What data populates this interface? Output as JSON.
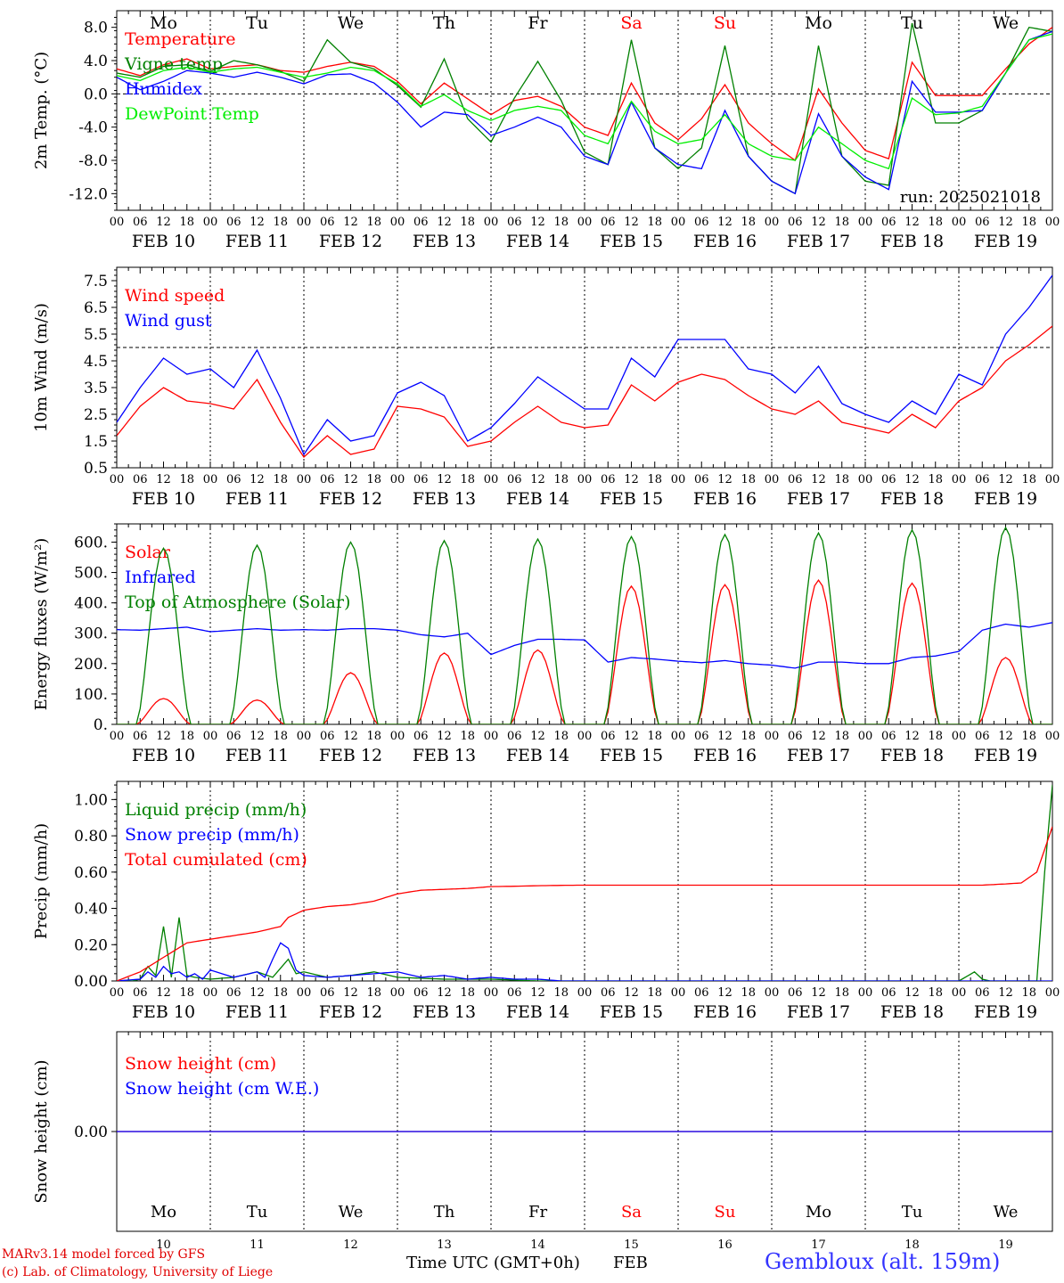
{
  "chart_data": [
    {
      "type": "line",
      "panel": "temperature",
      "ylabel": "2m Temp. (°C)",
      "ylim": [
        -14,
        10
      ],
      "yticks": [
        8.0,
        4.0,
        0.0,
        -4.0,
        -8.0,
        -12.0
      ],
      "ytick_labels": [
        "8.0",
        "4.0",
        "0.0",
        "-4.0",
        "-8.0",
        "-12.0"
      ],
      "ref_line": 0,
      "annotation": "run: 2025021018",
      "series": [
        {
          "name": "Temperature",
          "color": "#ff0000",
          "x": [
            0,
            6,
            12,
            18,
            24,
            30,
            36,
            42,
            48,
            54,
            60,
            66,
            72,
            78,
            84,
            90,
            96,
            102,
            108,
            114,
            120,
            126,
            132,
            138,
            144,
            150,
            156,
            162,
            168,
            174,
            180,
            186,
            192,
            198,
            204,
            210,
            216,
            222,
            228,
            234,
            240
          ],
          "y": [
            3.0,
            2.2,
            3.5,
            4.2,
            3.0,
            3.3,
            3.5,
            2.8,
            2.6,
            3.3,
            3.8,
            3.3,
            1.5,
            -1.2,
            1.3,
            -0.6,
            -2.5,
            -0.8,
            -0.3,
            -1.5,
            -4.0,
            -5.0,
            1.3,
            -3.5,
            -5.5,
            -3.0,
            1.1,
            -3.5,
            -6.0,
            -8.0,
            0.6,
            -3.5,
            -6.8,
            -7.8,
            3.8,
            -0.2,
            -0.2,
            -0.2,
            3.0,
            6.0,
            8.0
          ]
        },
        {
          "name": "Vigne temp",
          "color": "#008000",
          "x": [
            0,
            6,
            12,
            18,
            24,
            30,
            36,
            42,
            48,
            54,
            60,
            66,
            72,
            78,
            84,
            90,
            96,
            102,
            108,
            114,
            120,
            126,
            132,
            138,
            144,
            150,
            156,
            162,
            168,
            174,
            180,
            186,
            192,
            198,
            204,
            210,
            216,
            222,
            228,
            234,
            240
          ],
          "y": [
            2.5,
            2.0,
            3.3,
            3.5,
            2.7,
            4.0,
            3.5,
            2.7,
            1.5,
            6.5,
            3.8,
            3.0,
            1.0,
            -1.6,
            4.2,
            -3.0,
            -5.8,
            -0.5,
            3.9,
            -0.8,
            -7.0,
            -8.5,
            6.5,
            -6.5,
            -9.0,
            -6.5,
            5.8,
            -7.5,
            -10.5,
            -12.0,
            5.8,
            -7.5,
            -10.5,
            -11.0,
            8.5,
            -3.5,
            -3.5,
            -2.0,
            2.5,
            8.0,
            7.5
          ]
        },
        {
          "name": "Humidex",
          "color": "#0000ff",
          "x": [
            0,
            6,
            12,
            18,
            24,
            30,
            36,
            42,
            48,
            54,
            60,
            66,
            72,
            78,
            84,
            90,
            96,
            102,
            108,
            114,
            120,
            126,
            132,
            138,
            144,
            150,
            156,
            162,
            168,
            174,
            180,
            186,
            192,
            198,
            204,
            210,
            216,
            222,
            228,
            234,
            240
          ],
          "y": [
            2.0,
            0.5,
            1.5,
            2.8,
            2.5,
            2.0,
            2.6,
            2.0,
            1.2,
            2.3,
            2.4,
            1.3,
            -1.0,
            -4.0,
            -2.2,
            -2.5,
            -5.0,
            -4.0,
            -2.8,
            -4.0,
            -7.5,
            -8.5,
            -1.0,
            -6.5,
            -8.5,
            -9.0,
            -2.0,
            -7.5,
            -10.5,
            -12.0,
            -2.4,
            -7.5,
            -10.0,
            -11.5,
            1.5,
            -2.2,
            -2.2,
            -2.0,
            2.5,
            6.5,
            7.5
          ]
        },
        {
          "name": "DewPoint Temp",
          "color": "#00ee00",
          "x": [
            0,
            6,
            12,
            18,
            24,
            30,
            36,
            42,
            48,
            54,
            60,
            66,
            72,
            78,
            84,
            90,
            96,
            102,
            108,
            114,
            120,
            126,
            132,
            138,
            144,
            150,
            156,
            162,
            168,
            174,
            180,
            186,
            192,
            198,
            204,
            210,
            216,
            222,
            228,
            234,
            240
          ],
          "y": [
            2.2,
            1.6,
            2.8,
            3.2,
            2.6,
            3.0,
            3.2,
            2.6,
            2.0,
            2.5,
            3.2,
            2.8,
            1.2,
            -1.5,
            -0.1,
            -2.0,
            -3.2,
            -2.0,
            -1.5,
            -2.0,
            -5.0,
            -6.0,
            -0.9,
            -4.5,
            -6.0,
            -5.5,
            -2.5,
            -6.0,
            -7.5,
            -8.0,
            -4.0,
            -6.0,
            -8.0,
            -9.0,
            -0.5,
            -2.5,
            -2.3,
            -1.5,
            2.5,
            6.5,
            7.2
          ]
        }
      ]
    },
    {
      "type": "line",
      "panel": "wind",
      "ylabel": "10m Wind (m/s)",
      "ylim": [
        0.5,
        8.0
      ],
      "yticks": [
        7.5,
        6.5,
        5.5,
        4.5,
        3.5,
        2.5,
        1.5,
        0.5
      ],
      "ytick_labels": [
        "7.5",
        "6.5",
        "5.5",
        "4.5",
        "3.5",
        "2.5",
        "1.5",
        "0.5"
      ],
      "ref_line": 5,
      "series": [
        {
          "name": "Wind speed",
          "color": "#ff0000",
          "x": [
            0,
            6,
            12,
            18,
            24,
            30,
            36,
            42,
            48,
            54,
            60,
            66,
            72,
            78,
            84,
            90,
            96,
            102,
            108,
            114,
            120,
            126,
            132,
            138,
            144,
            150,
            156,
            162,
            168,
            174,
            180,
            186,
            192,
            198,
            204,
            210,
            216,
            222,
            228,
            234,
            240
          ],
          "y": [
            1.7,
            2.8,
            3.5,
            3.0,
            2.9,
            2.7,
            3.8,
            2.2,
            0.9,
            1.7,
            1.0,
            1.2,
            2.8,
            2.7,
            2.4,
            1.3,
            1.5,
            2.2,
            2.8,
            2.2,
            2.0,
            2.1,
            3.6,
            3.0,
            3.7,
            4.0,
            3.8,
            3.2,
            2.7,
            2.5,
            3.0,
            2.2,
            2.0,
            1.8,
            2.5,
            2.0,
            3.0,
            3.5,
            4.5,
            5.1,
            5.8
          ]
        },
        {
          "name": "Wind gust",
          "color": "#0000ff",
          "x": [
            0,
            6,
            12,
            18,
            24,
            30,
            36,
            42,
            48,
            54,
            60,
            66,
            72,
            78,
            84,
            90,
            96,
            102,
            108,
            114,
            120,
            126,
            132,
            138,
            144,
            150,
            156,
            162,
            168,
            174,
            180,
            186,
            192,
            198,
            204,
            210,
            216,
            222,
            228,
            234,
            240
          ],
          "y": [
            2.2,
            3.5,
            4.6,
            4.0,
            4.2,
            3.5,
            4.9,
            3.1,
            1.0,
            2.3,
            1.5,
            1.7,
            3.3,
            3.7,
            3.2,
            1.5,
            2.0,
            2.9,
            3.9,
            3.3,
            2.7,
            2.7,
            4.6,
            3.9,
            5.3,
            5.3,
            5.3,
            4.2,
            4.0,
            3.3,
            4.3,
            2.9,
            2.5,
            2.2,
            3.0,
            2.5,
            4.0,
            3.6,
            5.5,
            6.5,
            7.7
          ]
        }
      ]
    },
    {
      "type": "line",
      "panel": "energy",
      "ylabel": "Energy fluxes (W/m²)",
      "ylim": [
        0,
        660
      ],
      "yticks": [
        600,
        500,
        400,
        300,
        200,
        100,
        0
      ],
      "ytick_labels": [
        "600.",
        "500.",
        "400.",
        "300.",
        "200.",
        "100.",
        "0."
      ],
      "series": [
        {
          "name": "Solar",
          "color": "#ff0000",
          "peaks": [
            85,
            80,
            170,
            235,
            245,
            455,
            460,
            475,
            465,
            220
          ]
        },
        {
          "name": "Infrared",
          "color": "#0000ff",
          "x": [
            0,
            6,
            12,
            18,
            24,
            30,
            36,
            42,
            48,
            54,
            60,
            66,
            72,
            78,
            84,
            90,
            96,
            102,
            108,
            114,
            120,
            126,
            132,
            138,
            144,
            150,
            156,
            162,
            168,
            174,
            180,
            186,
            192,
            198,
            204,
            210,
            216,
            222,
            228,
            234,
            240
          ],
          "y": [
            312,
            310,
            315,
            320,
            305,
            310,
            315,
            310,
            312,
            310,
            315,
            315,
            310,
            295,
            288,
            300,
            230,
            260,
            280,
            280,
            278,
            205,
            220,
            215,
            208,
            203,
            210,
            200,
            195,
            185,
            205,
            205,
            200,
            200,
            220,
            225,
            240,
            310,
            330,
            320,
            335
          ]
        },
        {
          "name": "Top of Atmosphere (Solar)",
          "color": "#008000",
          "peaks": [
            580,
            590,
            600,
            605,
            610,
            618,
            625,
            630,
            640,
            648
          ]
        }
      ]
    },
    {
      "type": "line",
      "panel": "precip",
      "ylabel": "Precip (mm/h)",
      "ylim": [
        0,
        1.1
      ],
      "yticks": [
        1.0,
        0.8,
        0.6,
        0.4,
        0.2,
        0.0
      ],
      "ytick_labels": [
        "1.00",
        "0.80",
        "0.60",
        "0.40",
        "0.20",
        "0.00"
      ],
      "series": [
        {
          "name": "Liquid precip (mm/h)",
          "color": "#008000",
          "x": [
            0,
            4,
            6,
            8,
            10,
            12,
            14,
            16,
            18,
            20,
            24,
            30,
            36,
            40,
            42,
            44,
            46,
            48,
            54,
            60,
            66,
            72,
            84,
            96,
            108,
            120,
            216,
            220,
            222,
            224,
            228,
            232,
            236,
            238,
            240
          ],
          "y": [
            0,
            0,
            0.01,
            0.08,
            0.03,
            0.3,
            0.02,
            0.35,
            0.03,
            0.02,
            0.01,
            0.02,
            0.05,
            0.02,
            0.07,
            0.12,
            0.04,
            0.05,
            0.02,
            0.03,
            0.05,
            0.02,
            0.01,
            0.01,
            0,
            0,
            0,
            0.05,
            0.01,
            0,
            0,
            0,
            0,
            0.6,
            1.08
          ]
        },
        {
          "name": "Snow precip (mm/h)",
          "color": "#0000ff",
          "x": [
            0,
            6,
            8,
            10,
            12,
            14,
            16,
            18,
            20,
            22,
            24,
            30,
            36,
            38,
            40,
            42,
            44,
            46,
            48,
            54,
            60,
            66,
            72,
            78,
            84,
            90,
            96,
            102,
            108,
            114,
            120,
            240
          ],
          "y": [
            0,
            0.01,
            0.05,
            0.02,
            0.08,
            0.04,
            0.05,
            0.02,
            0.04,
            0.01,
            0.06,
            0.02,
            0.05,
            0.02,
            0.12,
            0.21,
            0.18,
            0.06,
            0.03,
            0.02,
            0.03,
            0.04,
            0.05,
            0.02,
            0.03,
            0.01,
            0.02,
            0.01,
            0.01,
            0,
            0,
            0
          ]
        },
        {
          "name": "Total cumulated (cm)",
          "color": "#ff0000",
          "x": [
            0,
            6,
            12,
            18,
            24,
            30,
            36,
            42,
            44,
            48,
            54,
            60,
            66,
            72,
            78,
            84,
            90,
            96,
            102,
            108,
            114,
            120,
            180,
            222,
            228,
            232,
            236,
            240
          ],
          "y": [
            0,
            0.05,
            0.13,
            0.21,
            0.23,
            0.25,
            0.27,
            0.3,
            0.35,
            0.39,
            0.41,
            0.42,
            0.44,
            0.48,
            0.5,
            0.505,
            0.51,
            0.52,
            0.522,
            0.525,
            0.527,
            0.528,
            0.528,
            0.528,
            0.535,
            0.54,
            0.6,
            0.85
          ]
        }
      ]
    },
    {
      "type": "line",
      "panel": "snow",
      "ylabel": "Snow height (cm)",
      "ylim": [
        -1,
        1
      ],
      "yticks": [
        0.0
      ],
      "ytick_labels": [
        "0.00"
      ],
      "series": [
        {
          "name": "Snow height (cm)",
          "color": "#ff0000",
          "x": [
            0,
            240
          ],
          "y": [
            0,
            0
          ]
        },
        {
          "name": "Snow height (cm W.E.)",
          "color": "#0000ff",
          "x": [
            0,
            240
          ],
          "y": [
            0,
            0
          ]
        }
      ]
    }
  ],
  "axis": {
    "hour_labels": [
      "00",
      "06",
      "12",
      "18"
    ],
    "end_label": "00",
    "date_labels": [
      "FEB 10",
      "FEB 11",
      "FEB 12",
      "FEB 13",
      "FEB 14",
      "FEB 15",
      "FEB 16",
      "FEB 17",
      "FEB 18",
      "FEB 19"
    ],
    "weekdays": [
      "Mo",
      "Tu",
      "We",
      "Th",
      "Fr",
      "Sa",
      "Su",
      "Mo",
      "Tu",
      "We"
    ],
    "weekday_colors": [
      "#000000",
      "#000000",
      "#000000",
      "#000000",
      "#000000",
      "#ff0000",
      "#ff0000",
      "#000000",
      "#000000",
      "#000000"
    ],
    "day_numbers": [
      "10",
      "11",
      "12",
      "13",
      "14",
      "15",
      "16",
      "17",
      "18",
      "19"
    ],
    "x_title": "Time UTC (GMT+0h)",
    "month": "FEB"
  },
  "footer": {
    "credit_line1": "MARv3.14 model forced by GFS",
    "credit_line2": "(c) Lab. of Climatology, University of Liege",
    "station": "Gembloux (alt. 159m)"
  }
}
